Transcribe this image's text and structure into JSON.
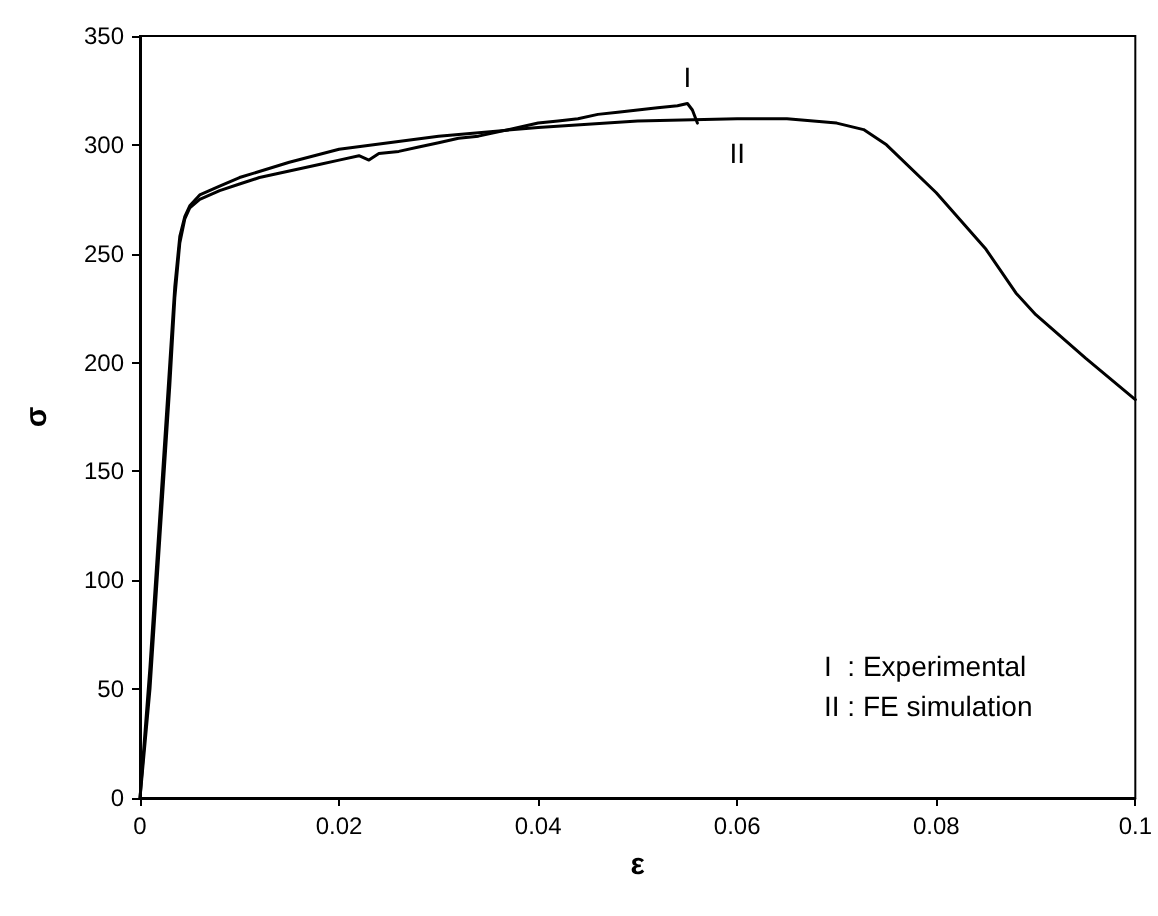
{
  "chart_data": {
    "type": "line",
    "xlabel": "ε",
    "ylabel": "σ",
    "xlim": [
      0,
      0.1
    ],
    "xticks": [
      0,
      0.02,
      0.04,
      0.06,
      0.08,
      0.1
    ],
    "ylim": [
      0,
      350
    ],
    "yticks": [
      0,
      50,
      100,
      150,
      200,
      250,
      300,
      350
    ],
    "grid": false,
    "marker": "none",
    "line_style": "solid",
    "series": [
      {
        "name": "I",
        "color": "#000000",
        "x": [
          0,
          0.001,
          0.002,
          0.003,
          0.0035,
          0.004,
          0.0045,
          0.005,
          0.006,
          0.008,
          0.01,
          0.012,
          0.015,
          0.018,
          0.02,
          0.022,
          0.023,
          0.024,
          0.026,
          0.028,
          0.03,
          0.032,
          0.034,
          0.036,
          0.038,
          0.04,
          0.042,
          0.044,
          0.046,
          0.048,
          0.05,
          0.052,
          0.054,
          0.055,
          0.0555,
          0.056
        ],
        "values": [
          0,
          50,
          120,
          190,
          230,
          255,
          266,
          271,
          275,
          279,
          282,
          285,
          288,
          291,
          293,
          295,
          293,
          296,
          297,
          299,
          301,
          303,
          304,
          306,
          308,
          310,
          311,
          312,
          314,
          315,
          316,
          317,
          318,
          319,
          316,
          310
        ]
      },
      {
        "name": "II",
        "color": "#000000",
        "x": [
          0,
          0.001,
          0.002,
          0.003,
          0.0035,
          0.004,
          0.0045,
          0.005,
          0.006,
          0.008,
          0.01,
          0.015,
          0.02,
          0.03,
          0.04,
          0.05,
          0.06,
          0.065,
          0.07,
          0.0727,
          0.075,
          0.08,
          0.085,
          0.088,
          0.09,
          0.095,
          0.1
        ],
        "values": [
          0,
          60,
          130,
          200,
          235,
          258,
          267,
          272,
          277,
          281,
          285,
          292,
          298,
          304,
          308,
          311,
          312,
          312,
          310,
          307,
          300,
          278,
          252,
          232,
          222,
          202,
          183
        ]
      }
    ],
    "annotations": [
      "I  : Experimental",
      "II : FE simulation"
    ]
  }
}
